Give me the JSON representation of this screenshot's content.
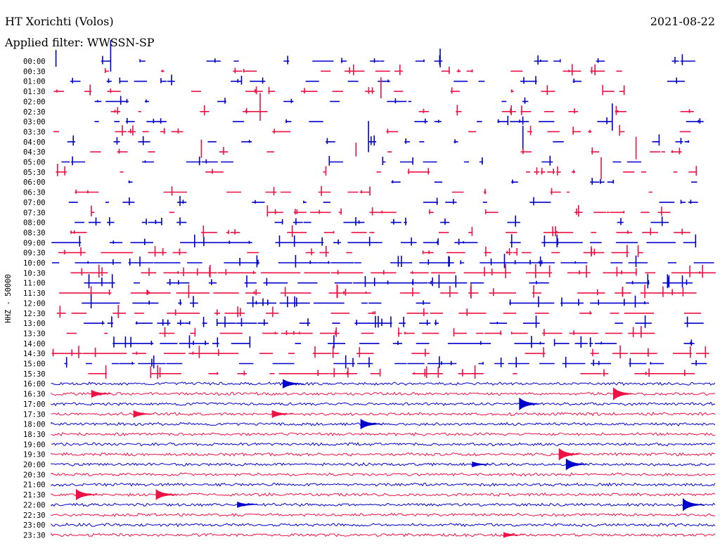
{
  "header": {
    "station": "HT Xorichti (Volos)",
    "date": "2021-08-22",
    "filter_label": "Applied filter: WWSSN-SP"
  },
  "colors": {
    "trace_a": "#0000cc",
    "trace_b": "#ee1144"
  },
  "chart_data": {
    "type": "line",
    "title": "HT Xorichti (Volos)",
    "subtitle": "Applied filter: WWSSN-SP",
    "ylabel": "HHZ - 50000",
    "xlabel": "",
    "grid": false,
    "legend": "none",
    "categories": [
      "00:00",
      "00:30",
      "01:00",
      "01:30",
      "02:00",
      "02:30",
      "03:00",
      "03:30",
      "04:00",
      "04:30",
      "05:00",
      "05:30",
      "06:00",
      "06:30",
      "07:00",
      "07:30",
      "08:00",
      "08:30",
      "09:00",
      "09:30",
      "10:00",
      "10:30",
      "11:00",
      "11:30",
      "12:00",
      "12:30",
      "13:00",
      "13:30",
      "14:00",
      "14:30",
      "15:00",
      "15:30",
      "16:00",
      "16:30",
      "17:00",
      "17:30",
      "18:00",
      "18:30",
      "19:00",
      "19:30",
      "20:00",
      "20:30",
      "21:00",
      "21:30",
      "22:00",
      "22:30",
      "23:00",
      "23:30"
    ],
    "activity": [
      0.35,
      0.35,
      0.4,
      0.3,
      0.2,
      0.3,
      0.35,
      0.3,
      0.25,
      0.15,
      0.3,
      0.3,
      0.05,
      0.3,
      0.35,
      0.4,
      0.35,
      0.45,
      0.75,
      0.55,
      0.9,
      0.95,
      0.85,
      0.9,
      0.75,
      0.65,
      0.6,
      0.55,
      0.65,
      0.6,
      0.7,
      0.7,
      1,
      1,
      1,
      1,
      1,
      1,
      1,
      1,
      1,
      1,
      1,
      1,
      1,
      1,
      1,
      1
    ],
    "continuous_from_index": 32
  }
}
